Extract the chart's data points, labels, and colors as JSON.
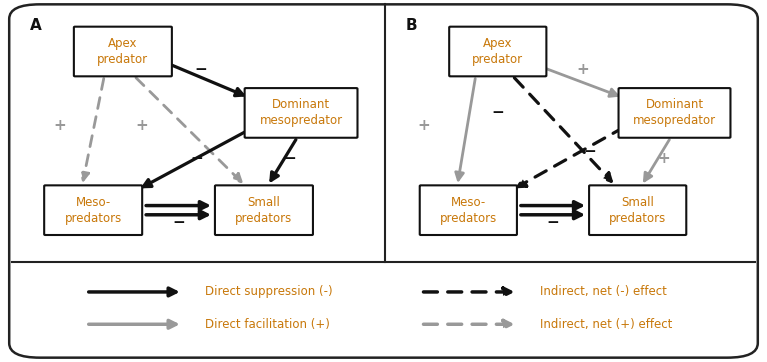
{
  "fig_width": 7.67,
  "fig_height": 3.62,
  "dpi": 100,
  "bg_color": "#ffffff",
  "border_color": "#222222",
  "box_edge_color": "#111111",
  "box_fill": "#ffffff",
  "text_color_node": "#c8780a",
  "text_color_label": "#111111",
  "text_color_legend": "#c8780a",
  "gray": "#999999",
  "black": "#111111",
  "label_A": "A",
  "label_B": "B",
  "node_apex": "Apex\npredator",
  "node_dominant": "Dominant\nmesopredator",
  "node_meso": "Meso-\npredators",
  "node_small": "Small\npredators",
  "leg1": "Direct suppression (-)",
  "leg2": "Indirect, net (-) effect",
  "leg3": "Direct facilitation (+)",
  "leg4": "Indirect, net (+) effect"
}
